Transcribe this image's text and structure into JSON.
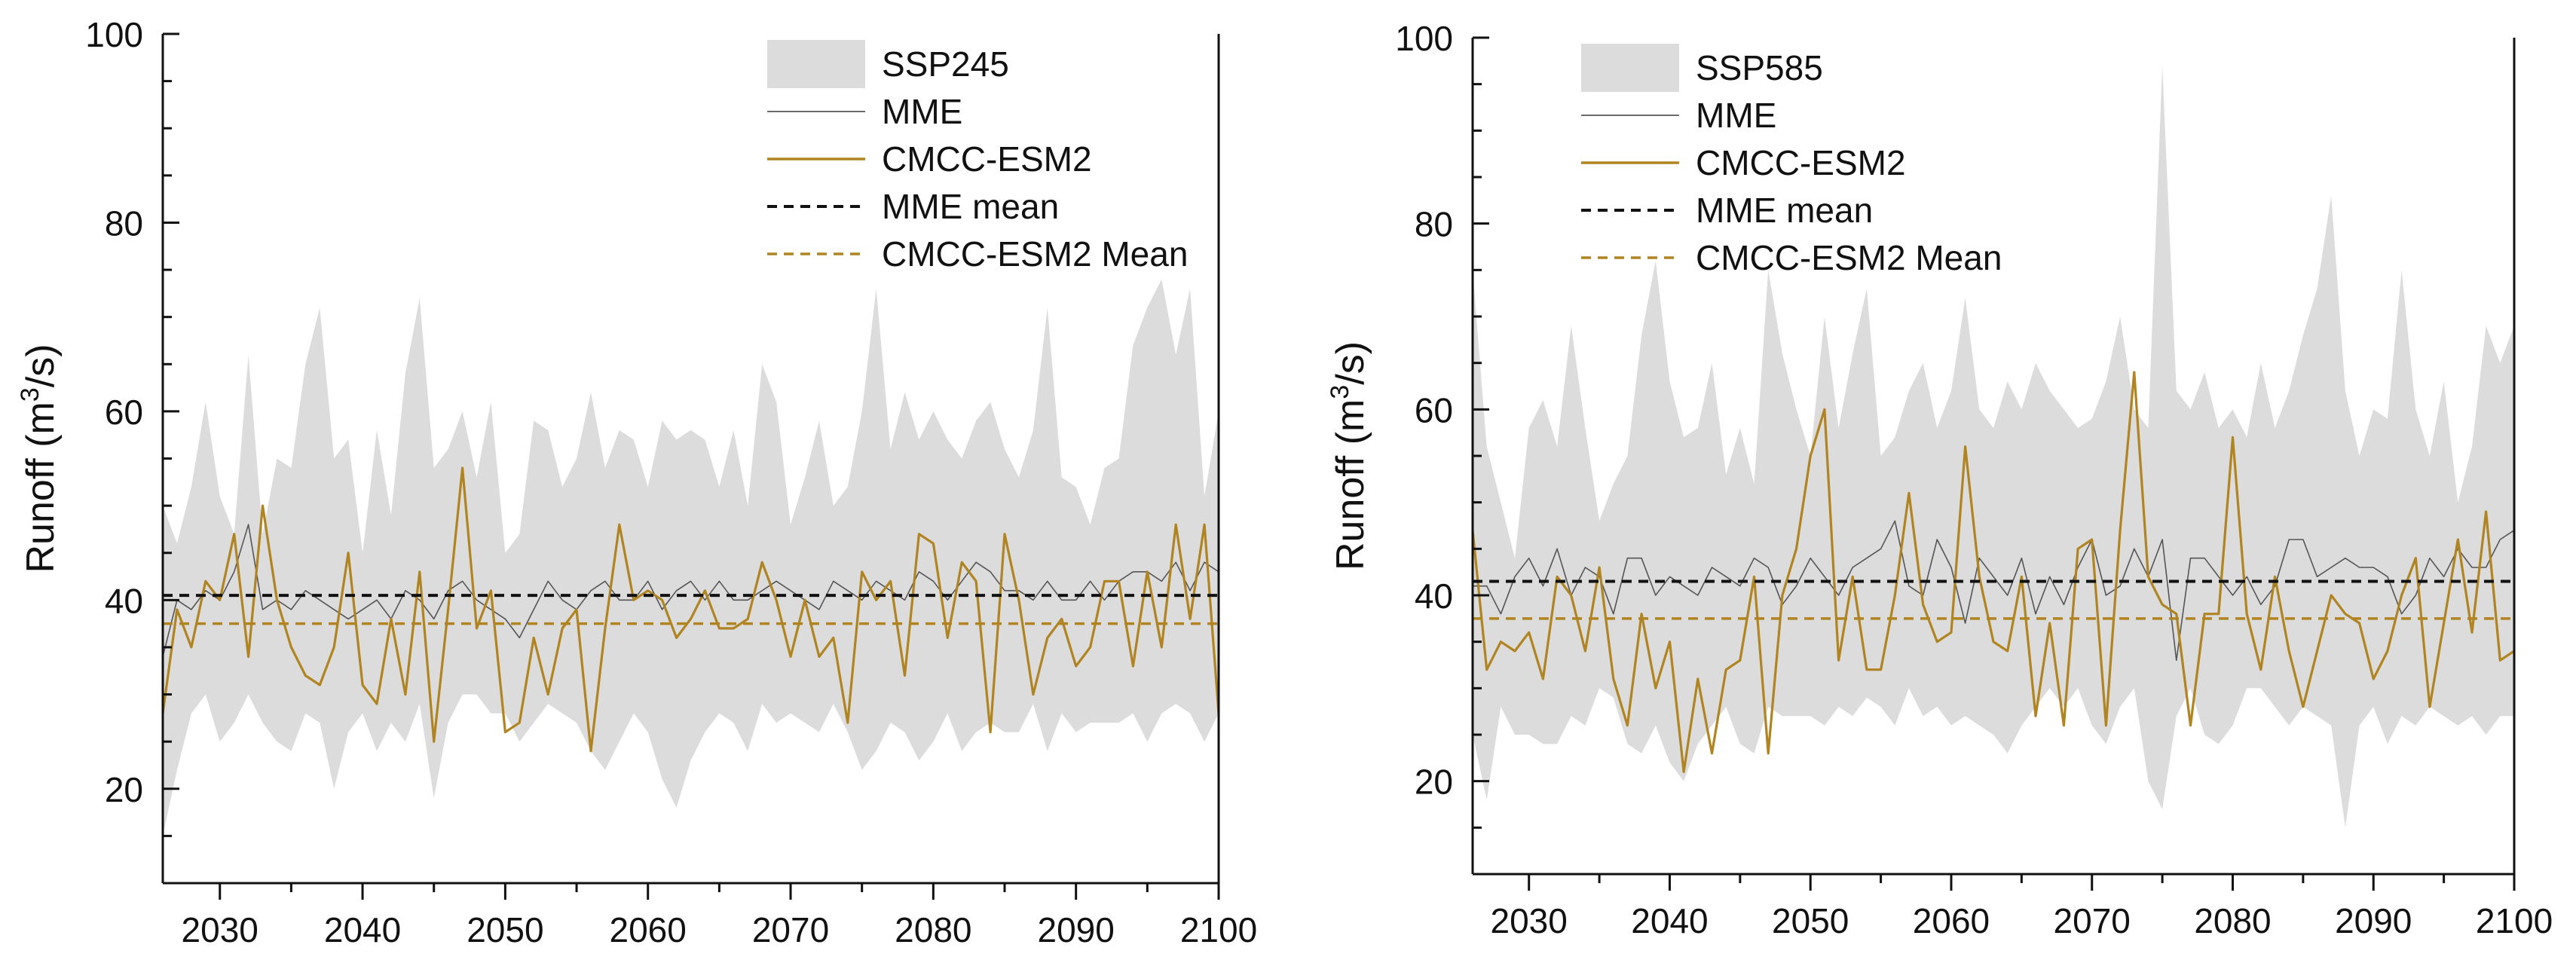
{
  "chart_data": [
    {
      "type": "line",
      "title": "",
      "xlabel": "",
      "ylabel_prefix": "Runoff (m",
      "ylabel_exp": "3",
      "ylabel_suffix": "/s)",
      "ylabel": "Runoff (m3/s)",
      "xlim": [
        2026,
        2100
      ],
      "ylim": [
        10,
        100
      ],
      "x_ticks": [
        2030,
        2040,
        2050,
        2060,
        2070,
        2080,
        2090,
        2100
      ],
      "x_tick_labels": [
        "2030",
        "2040",
        "2050",
        "2060",
        "2070",
        "2080",
        "2090",
        "2100"
      ],
      "y_ticks": [
        20,
        40,
        60,
        80,
        100
      ],
      "y_tick_labels": [
        "20",
        "40",
        "60",
        "80",
        "100"
      ],
      "legend_position": "top-right",
      "legend": [
        "SSP245",
        "MME",
        "CMCC-ESM2",
        "MME mean",
        "CMCC-ESM2 Mean"
      ],
      "years_start": 2026,
      "band": {
        "name": "SSP245",
        "upper": [
          50,
          46,
          52,
          61,
          51,
          47,
          66,
          47,
          55,
          54,
          65,
          71,
          55,
          57,
          45,
          58,
          49,
          64,
          72,
          54,
          56,
          60,
          53,
          61,
          45,
          47,
          59,
          58,
          52,
          55,
          62,
          54,
          58,
          57,
          52,
          59,
          57,
          58,
          57,
          52,
          58,
          50,
          65,
          61,
          48,
          53,
          59,
          50,
          52,
          60,
          73,
          56,
          62,
          57,
          60,
          57,
          55,
          59,
          61,
          56,
          53,
          58,
          71,
          53,
          52,
          48,
          54,
          55,
          67,
          71,
          74,
          66,
          73,
          51,
          60
        ],
        "lower": [
          15,
          22,
          28,
          30,
          25,
          27,
          30,
          27,
          25,
          24,
          28,
          27,
          20,
          26,
          28,
          24,
          27,
          25,
          29,
          19,
          27,
          30,
          30,
          28,
          28,
          25,
          27,
          29,
          28,
          27,
          24,
          22,
          25,
          28,
          26,
          21,
          18,
          23,
          26,
          28,
          27,
          24,
          29,
          27,
          28,
          27,
          26,
          29,
          26,
          22,
          24,
          27,
          26,
          23,
          25,
          28,
          24,
          26,
          27,
          26,
          26,
          29,
          24,
          28,
          26,
          27,
          27,
          27,
          28,
          25,
          28,
          29,
          28,
          25,
          28
        ]
      },
      "series": [
        {
          "name": "MME",
          "color": "#555555",
          "values": [
            34,
            40,
            39,
            41,
            40,
            43,
            48,
            39,
            40,
            39,
            41,
            40,
            39,
            38,
            39,
            40,
            38,
            41,
            40,
            38,
            41,
            42,
            40,
            39,
            38,
            36,
            39,
            42,
            40,
            39,
            41,
            42,
            40,
            40,
            42,
            39,
            41,
            42,
            40,
            42,
            40,
            40,
            41,
            42,
            41,
            40,
            39,
            42,
            41,
            40,
            42,
            41,
            40,
            43,
            42,
            40,
            42,
            44,
            43,
            41,
            41,
            40,
            42,
            40,
            40,
            42,
            40,
            42,
            43,
            43,
            42,
            44,
            41,
            44,
            43
          ]
        },
        {
          "name": "CMCC-ESM2",
          "color": "#b08420",
          "values": [
            28,
            39,
            35,
            42,
            40,
            47,
            34,
            50,
            40,
            35,
            32,
            31,
            35,
            45,
            31,
            29,
            38,
            30,
            43,
            25,
            39,
            54,
            37,
            41,
            26,
            27,
            36,
            30,
            37,
            39,
            24,
            37,
            48,
            40,
            41,
            40,
            36,
            38,
            41,
            37,
            37,
            38,
            44,
            40,
            34,
            40,
            34,
            36,
            27,
            43,
            40,
            42,
            32,
            47,
            46,
            36,
            44,
            42,
            26,
            47,
            40,
            30,
            36,
            38,
            33,
            35,
            42,
            42,
            33,
            43,
            35,
            48,
            38,
            48,
            28
          ]
        }
      ],
      "mme_mean": 40.5,
      "cmcc_mean": 37.5
    },
    {
      "type": "line",
      "title": "",
      "xlabel": "",
      "ylabel_prefix": "Runoff (m",
      "ylabel_exp": "3",
      "ylabel_suffix": "/s)",
      "ylabel": "Runoff (m3/s)",
      "xlim": [
        2026,
        2100
      ],
      "ylim": [
        10,
        100
      ],
      "x_ticks": [
        2030,
        2040,
        2050,
        2060,
        2070,
        2080,
        2090,
        2100
      ],
      "x_tick_labels": [
        "2030",
        "2040",
        "2050",
        "2060",
        "2070",
        "2080",
        "2090",
        "2100"
      ],
      "y_ticks": [
        20,
        40,
        60,
        80,
        100
      ],
      "y_tick_labels": [
        "20",
        "40",
        "60",
        "80",
        "100"
      ],
      "legend_position": "top-right",
      "legend": [
        "SSP585",
        "MME",
        "CMCC-ESM2",
        "MME mean",
        "CMCC-ESM2 Mean"
      ],
      "years_start": 2026,
      "band": {
        "name": "SSP585",
        "upper": [
          75,
          56,
          50,
          44,
          58,
          61,
          56,
          69,
          58,
          48,
          52,
          55,
          68,
          76,
          63,
          57,
          58,
          65,
          53,
          58,
          52,
          75,
          66,
          60,
          55,
          70,
          58,
          66,
          73,
          55,
          57,
          62,
          65,
          58,
          62,
          72,
          60,
          58,
          63,
          60,
          65,
          62,
          60,
          58,
          59,
          63,
          70,
          60,
          58,
          97,
          62,
          60,
          64,
          58,
          60,
          57,
          65,
          58,
          62,
          68,
          73,
          83,
          62,
          55,
          60,
          59,
          75,
          60,
          55,
          63,
          50,
          56,
          69,
          65,
          69
        ],
        "lower": [
          25,
          18,
          28,
          25,
          25,
          24,
          24,
          27,
          26,
          30,
          29,
          24,
          23,
          26,
          22,
          20,
          24,
          26,
          28,
          24,
          23,
          28,
          27,
          27,
          27,
          26,
          28,
          27,
          29,
          28,
          26,
          30,
          27,
          28,
          26,
          27,
          26,
          25,
          23,
          26,
          28,
          30,
          28,
          30,
          26,
          24,
          28,
          30,
          20,
          17,
          27,
          30,
          25,
          24,
          26,
          30,
          30,
          28,
          26,
          28,
          27,
          26,
          15,
          26,
          28,
          24,
          27,
          26,
          28,
          27,
          26,
          27,
          25,
          27,
          27
        ]
      },
      "series": [
        {
          "name": "MME",
          "color": "#555555",
          "values": [
            41,
            41,
            38,
            42,
            44,
            41,
            45,
            40,
            43,
            42,
            38,
            44,
            44,
            40,
            42,
            41,
            40,
            43,
            42,
            41,
            44,
            43,
            39,
            41,
            44,
            42,
            40,
            43,
            44,
            45,
            48,
            41,
            40,
            46,
            43,
            37,
            44,
            42,
            40,
            44,
            38,
            42,
            39,
            43,
            46,
            40,
            41,
            45,
            42,
            46,
            33,
            44,
            44,
            42,
            40,
            42,
            39,
            41,
            46,
            46,
            42,
            43,
            44,
            43,
            43,
            42,
            38,
            40,
            44,
            42,
            45,
            43,
            43,
            46,
            47
          ]
        },
        {
          "name": "CMCC-ESM2",
          "color": "#b08420",
          "values": [
            47,
            32,
            35,
            34,
            36,
            31,
            42,
            40,
            34,
            43,
            31,
            26,
            38,
            30,
            35,
            21,
            31,
            23,
            32,
            33,
            42,
            23,
            40,
            45,
            55,
            60,
            33,
            42,
            32,
            32,
            40,
            51,
            39,
            35,
            36,
            56,
            42,
            35,
            34,
            42,
            27,
            37,
            26,
            45,
            46,
            26,
            47,
            64,
            42,
            39,
            38,
            26,
            38,
            38,
            57,
            38,
            32,
            42,
            34,
            28,
            34,
            40,
            38,
            37,
            31,
            34,
            40,
            44,
            28,
            37,
            46,
            36,
            49,
            33,
            34
          ]
        }
      ],
      "mme_mean": 41.5,
      "cmcc_mean": 37.5
    }
  ]
}
